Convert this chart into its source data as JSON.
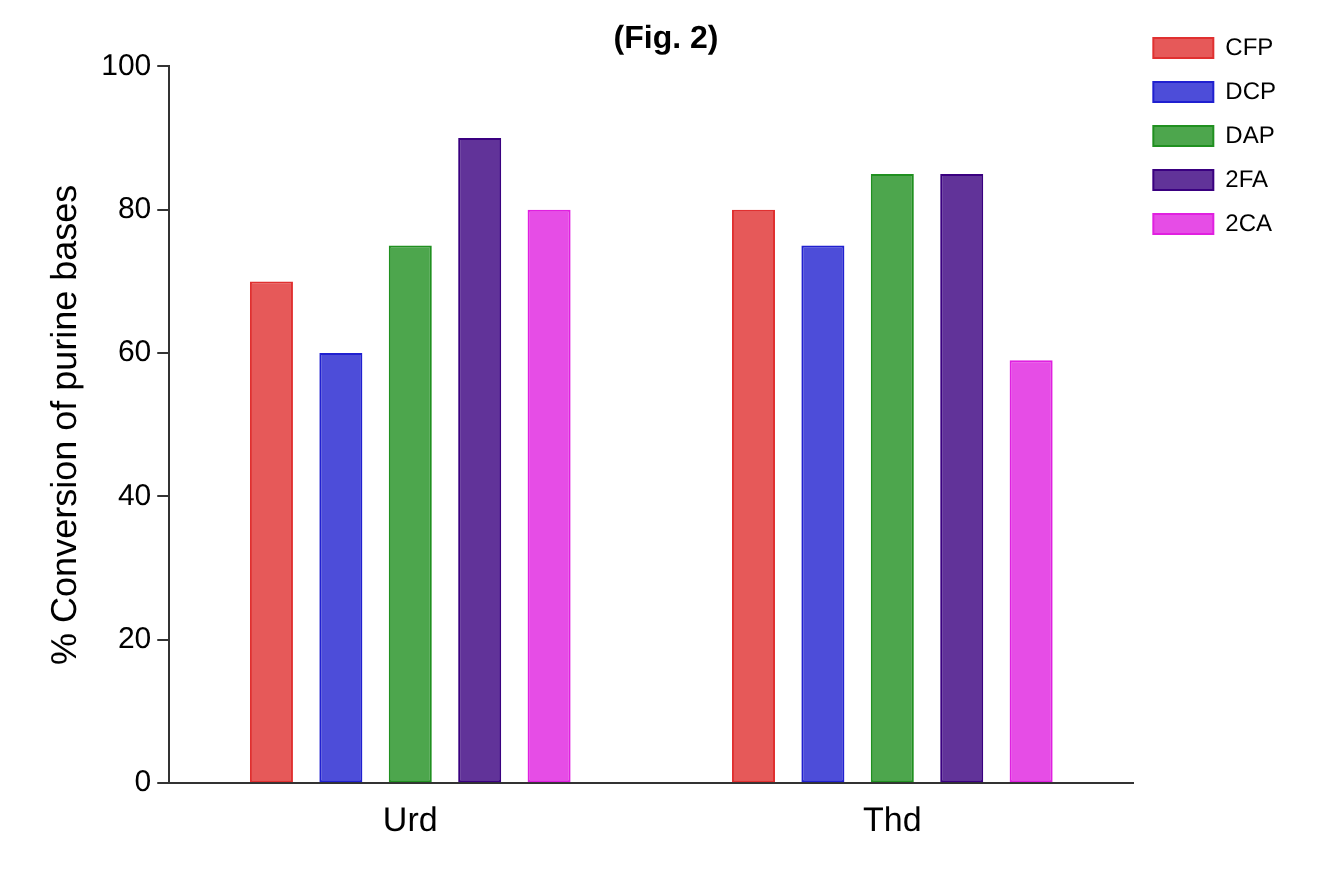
{
  "chart_data": {
    "type": "bar",
    "title": "(Fig. 2)",
    "ylabel": "% Conversion of purine bases",
    "categories": [
      "Urd",
      "Thd"
    ],
    "series": [
      {
        "name": "CFP",
        "color": "#e03030",
        "values": [
          70,
          80
        ]
      },
      {
        "name": "DCP",
        "color": "#2020d0",
        "values": [
          60,
          75
        ]
      },
      {
        "name": "DAP",
        "color": "#209020",
        "values": [
          75,
          85
        ]
      },
      {
        "name": "2FA",
        "color": "#3a0080",
        "values": [
          90,
          85
        ]
      },
      {
        "name": "2CA",
        "color": "#e020e0",
        "values": [
          80,
          59
        ]
      }
    ],
    "ylim": [
      0,
      100
    ],
    "yticks": [
      0,
      20,
      40,
      60,
      80,
      100
    ],
    "grid": false,
    "legend": "top right"
  }
}
